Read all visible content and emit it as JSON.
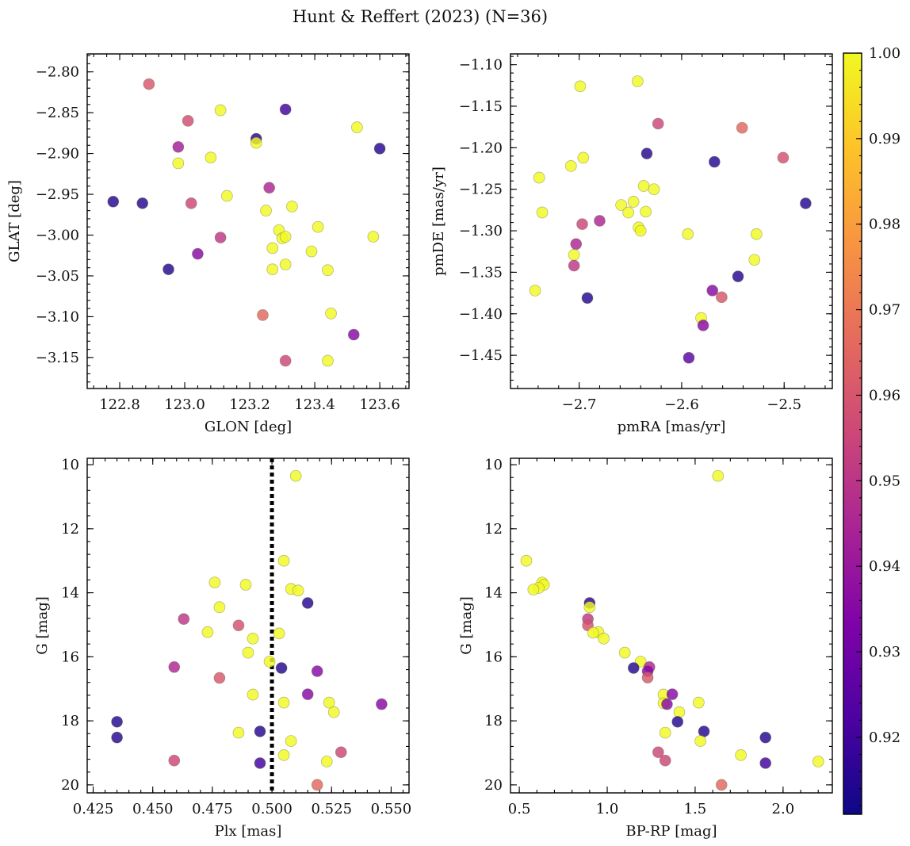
{
  "figure_title": "Hunt & Reffert (2023) (N=36)",
  "colorbar": {
    "ticks": [
      "0.92",
      "0.93",
      "0.94",
      "0.95",
      "0.96",
      "0.97",
      "0.98",
      "0.99",
      "1.00"
    ],
    "range": [
      0.911,
      1.0
    ],
    "colormap": "plasma"
  },
  "chart_data": [
    {
      "type": "scatter",
      "xlabel": "GLON [deg]",
      "ylabel": "GLAT [deg]",
      "xlim": [
        122.7,
        123.69
      ],
      "ylim": [
        -3.188,
        -2.778
      ],
      "xticks": [
        122.8,
        123.0,
        123.2,
        123.4,
        123.6
      ],
      "xtick_labels": [
        "122.8",
        "123.0",
        "123.2",
        "123.4",
        "123.6"
      ],
      "yticks": [
        -2.8,
        -2.85,
        -2.9,
        -2.95,
        -3.0,
        -3.05,
        -3.1,
        -3.15
      ],
      "ytick_labels": [
        "−2.80",
        "−2.85",
        "−2.90",
        "−2.95",
        "−3.00",
        "−3.05",
        "−3.10",
        "−3.15"
      ],
      "points": [
        {
          "x": 122.89,
          "y": -2.815,
          "c": 0.96
        },
        {
          "x": 123.01,
          "y": -2.86,
          "c": 0.957
        },
        {
          "x": 123.11,
          "y": -2.847,
          "c": 1.0
        },
        {
          "x": 123.31,
          "y": -2.846,
          "c": 0.92
        },
        {
          "x": 123.22,
          "y": -2.882,
          "c": 0.915
        },
        {
          "x": 123.22,
          "y": -2.887,
          "c": 1.0
        },
        {
          "x": 122.98,
          "y": -2.892,
          "c": 0.942
        },
        {
          "x": 122.98,
          "y": -2.912,
          "c": 1.0
        },
        {
          "x": 123.08,
          "y": -2.905,
          "c": 1.0
        },
        {
          "x": 123.53,
          "y": -2.868,
          "c": 1.0
        },
        {
          "x": 123.6,
          "y": -2.894,
          "c": 0.915
        },
        {
          "x": 122.78,
          "y": -2.959,
          "c": 0.915
        },
        {
          "x": 122.87,
          "y": -2.961,
          "c": 0.915
        },
        {
          "x": 123.02,
          "y": -2.961,
          "c": 0.955
        },
        {
          "x": 123.13,
          "y": -2.952,
          "c": 1.0
        },
        {
          "x": 123.26,
          "y": -2.942,
          "c": 0.945
        },
        {
          "x": 123.25,
          "y": -2.97,
          "c": 1.0
        },
        {
          "x": 123.33,
          "y": -2.965,
          "c": 1.0
        },
        {
          "x": 123.29,
          "y": -2.994,
          "c": 1.0
        },
        {
          "x": 123.3,
          "y": -3.004,
          "c": 1.0
        },
        {
          "x": 123.31,
          "y": -3.002,
          "c": 1.0
        },
        {
          "x": 123.41,
          "y": -2.99,
          "c": 1.0
        },
        {
          "x": 123.58,
          "y": -3.002,
          "c": 1.0
        },
        {
          "x": 123.11,
          "y": -3.003,
          "c": 0.95
        },
        {
          "x": 123.04,
          "y": -3.023,
          "c": 0.935
        },
        {
          "x": 122.95,
          "y": -3.042,
          "c": 0.915
        },
        {
          "x": 123.27,
          "y": -3.016,
          "c": 1.0
        },
        {
          "x": 123.27,
          "y": -3.042,
          "c": 1.0
        },
        {
          "x": 123.31,
          "y": -3.036,
          "c": 1.0
        },
        {
          "x": 123.39,
          "y": -3.02,
          "c": 1.0
        },
        {
          "x": 123.44,
          "y": -3.043,
          "c": 1.0
        },
        {
          "x": 123.24,
          "y": -3.098,
          "c": 0.965
        },
        {
          "x": 123.45,
          "y": -3.096,
          "c": 1.0
        },
        {
          "x": 123.52,
          "y": -3.122,
          "c": 0.935
        },
        {
          "x": 123.31,
          "y": -3.154,
          "c": 0.955
        },
        {
          "x": 123.44,
          "y": -3.154,
          "c": 1.0
        }
      ]
    },
    {
      "type": "scatter",
      "xlabel": "pmRA [mas/yr]",
      "ylabel": "pmDE [mas/yr]",
      "xlim": [
        -2.767,
        -2.453
      ],
      "ylim": [
        -1.49,
        -1.087
      ],
      "xticks": [
        -2.7,
        -2.6,
        -2.5
      ],
      "xtick_labels": [
        "−2.7",
        "−2.6",
        "−2.5"
      ],
      "yticks": [
        -1.1,
        -1.15,
        -1.2,
        -1.25,
        -1.3,
        -1.35,
        -1.4,
        -1.45
      ],
      "ytick_labels": [
        "−1.10",
        "−1.15",
        "−1.20",
        "−1.25",
        "−1.30",
        "−1.35",
        "−1.40",
        "−1.45"
      ],
      "points": [
        {
          "x": -2.699,
          "y": -1.126,
          "c": 1.0
        },
        {
          "x": -2.643,
          "y": -1.12,
          "c": 1.0
        },
        {
          "x": -2.623,
          "y": -1.171,
          "c": 0.955
        },
        {
          "x": -2.541,
          "y": -1.176,
          "c": 0.965
        },
        {
          "x": -2.501,
          "y": -1.212,
          "c": 0.958
        },
        {
          "x": -2.634,
          "y": -1.207,
          "c": 0.915
        },
        {
          "x": -2.568,
          "y": -1.217,
          "c": 0.915
        },
        {
          "x": -2.696,
          "y": -1.212,
          "c": 1.0
        },
        {
          "x": -2.708,
          "y": -1.222,
          "c": 1.0
        },
        {
          "x": -2.739,
          "y": -1.236,
          "c": 1.0
        },
        {
          "x": -2.736,
          "y": -1.278,
          "c": 1.0
        },
        {
          "x": -2.637,
          "y": -1.246,
          "c": 1.0
        },
        {
          "x": -2.627,
          "y": -1.25,
          "c": 1.0
        },
        {
          "x": -2.647,
          "y": -1.265,
          "c": 1.0
        },
        {
          "x": -2.659,
          "y": -1.269,
          "c": 1.0
        },
        {
          "x": -2.652,
          "y": -1.278,
          "c": 1.0
        },
        {
          "x": -2.635,
          "y": -1.277,
          "c": 1.0
        },
        {
          "x": -2.479,
          "y": -1.267,
          "c": 0.915
        },
        {
          "x": -2.68,
          "y": -1.288,
          "c": 0.945
        },
        {
          "x": -2.697,
          "y": -1.292,
          "c": 0.955
        },
        {
          "x": -2.642,
          "y": -1.296,
          "c": 1.0
        },
        {
          "x": -2.64,
          "y": -1.3,
          "c": 1.0
        },
        {
          "x": -2.594,
          "y": -1.304,
          "c": 1.0
        },
        {
          "x": -2.527,
          "y": -1.304,
          "c": 1.0
        },
        {
          "x": -2.703,
          "y": -1.316,
          "c": 0.945
        },
        {
          "x": -2.705,
          "y": -1.329,
          "c": 1.0
        },
        {
          "x": -2.705,
          "y": -1.342,
          "c": 0.95
        },
        {
          "x": -2.529,
          "y": -1.335,
          "c": 1.0
        },
        {
          "x": -2.545,
          "y": -1.355,
          "c": 0.915
        },
        {
          "x": -2.743,
          "y": -1.372,
          "c": 1.0
        },
        {
          "x": -2.57,
          "y": -1.372,
          "c": 0.935
        },
        {
          "x": -2.561,
          "y": -1.38,
          "c": 0.96
        },
        {
          "x": -2.692,
          "y": -1.381,
          "c": 0.915
        },
        {
          "x": -2.581,
          "y": -1.405,
          "c": 1.0
        },
        {
          "x": -2.579,
          "y": -1.414,
          "c": 0.935
        },
        {
          "x": -2.593,
          "y": -1.453,
          "c": 0.925
        }
      ]
    },
    {
      "type": "scatter",
      "xlabel": "Plx [mas]",
      "ylabel": "G [mag]",
      "xlim": [
        0.4225,
        0.5575
      ],
      "ylim": [
        20.25,
        9.8
      ],
      "y_inverted": true,
      "vline": {
        "x": 0.5,
        "style": "dotted"
      },
      "xticks": [
        0.425,
        0.45,
        0.475,
        0.5,
        0.525,
        0.55
      ],
      "xtick_labels": [
        "0.425",
        "0.450",
        "0.475",
        "0.500",
        "0.525",
        "0.550"
      ],
      "yticks": [
        10,
        12,
        14,
        16,
        18,
        20
      ],
      "ytick_labels": [
        "10",
        "12",
        "14",
        "16",
        "18",
        "20"
      ],
      "points": [
        {
          "x": 0.51,
          "y": 10.35,
          "c": 1.0
        },
        {
          "x": 0.505,
          "y": 13.0,
          "c": 1.0
        },
        {
          "x": 0.476,
          "y": 13.68,
          "c": 1.0
        },
        {
          "x": 0.489,
          "y": 13.75,
          "c": 1.0
        },
        {
          "x": 0.508,
          "y": 13.88,
          "c": 1.0
        },
        {
          "x": 0.511,
          "y": 13.93,
          "c": 1.0
        },
        {
          "x": 0.515,
          "y": 14.32,
          "c": 0.915
        },
        {
          "x": 0.478,
          "y": 14.45,
          "c": 1.0
        },
        {
          "x": 0.463,
          "y": 14.82,
          "c": 0.95
        },
        {
          "x": 0.486,
          "y": 15.02,
          "c": 0.958
        },
        {
          "x": 0.473,
          "y": 15.23,
          "c": 1.0
        },
        {
          "x": 0.503,
          "y": 15.27,
          "c": 1.0
        },
        {
          "x": 0.492,
          "y": 15.43,
          "c": 1.0
        },
        {
          "x": 0.49,
          "y": 15.87,
          "c": 1.0
        },
        {
          "x": 0.499,
          "y": 16.15,
          "c": 1.0
        },
        {
          "x": 0.459,
          "y": 16.32,
          "c": 0.945
        },
        {
          "x": 0.504,
          "y": 16.35,
          "c": 0.915
        },
        {
          "x": 0.519,
          "y": 16.45,
          "c": 0.935
        },
        {
          "x": 0.478,
          "y": 16.66,
          "c": 0.96
        },
        {
          "x": 0.492,
          "y": 17.18,
          "c": 1.0
        },
        {
          "x": 0.515,
          "y": 17.17,
          "c": 0.935
        },
        {
          "x": 0.505,
          "y": 17.43,
          "c": 1.0
        },
        {
          "x": 0.524,
          "y": 17.43,
          "c": 1.0
        },
        {
          "x": 0.546,
          "y": 17.48,
          "c": 0.935
        },
        {
          "x": 0.526,
          "y": 17.73,
          "c": 1.0
        },
        {
          "x": 0.435,
          "y": 18.03,
          "c": 0.915
        },
        {
          "x": 0.486,
          "y": 18.37,
          "c": 1.0
        },
        {
          "x": 0.495,
          "y": 18.33,
          "c": 0.915
        },
        {
          "x": 0.435,
          "y": 18.52,
          "c": 0.915
        },
        {
          "x": 0.508,
          "y": 18.63,
          "c": 1.0
        },
        {
          "x": 0.529,
          "y": 18.98,
          "c": 0.955
        },
        {
          "x": 0.505,
          "y": 19.07,
          "c": 1.0
        },
        {
          "x": 0.459,
          "y": 19.24,
          "c": 0.955
        },
        {
          "x": 0.523,
          "y": 19.27,
          "c": 1.0
        },
        {
          "x": 0.495,
          "y": 19.32,
          "c": 0.92
        },
        {
          "x": 0.519,
          "y": 20.0,
          "c": 0.965
        }
      ]
    },
    {
      "type": "scatter",
      "xlabel": "BP-RP [mag]",
      "ylabel": "G [mag]",
      "xlim": [
        0.45,
        2.28
      ],
      "ylim": [
        20.25,
        9.8
      ],
      "y_inverted": true,
      "xticks": [
        0.5,
        1.0,
        1.5,
        2.0
      ],
      "xtick_labels": [
        "0.5",
        "1.0",
        "1.5",
        "2.0"
      ],
      "yticks": [
        10,
        12,
        14,
        16,
        18,
        20
      ],
      "ytick_labels": [
        "10",
        "12",
        "14",
        "16",
        "18",
        "20"
      ],
      "points": [
        {
          "x": 1.63,
          "y": 10.35,
          "c": 1.0
        },
        {
          "x": 0.54,
          "y": 13.0,
          "c": 1.0
        },
        {
          "x": 0.63,
          "y": 13.68,
          "c": 1.0
        },
        {
          "x": 0.64,
          "y": 13.75,
          "c": 1.0
        },
        {
          "x": 0.61,
          "y": 13.85,
          "c": 1.0
        },
        {
          "x": 0.58,
          "y": 13.9,
          "c": 1.0
        },
        {
          "x": 0.9,
          "y": 14.32,
          "c": 0.915
        },
        {
          "x": 0.9,
          "y": 14.45,
          "c": 1.0
        },
        {
          "x": 0.89,
          "y": 14.82,
          "c": 0.95
        },
        {
          "x": 0.89,
          "y": 15.02,
          "c": 0.958
        },
        {
          "x": 0.95,
          "y": 15.23,
          "c": 1.0
        },
        {
          "x": 0.92,
          "y": 15.25,
          "c": 1.0
        },
        {
          "x": 0.98,
          "y": 15.43,
          "c": 1.0
        },
        {
          "x": 1.1,
          "y": 15.87,
          "c": 1.0
        },
        {
          "x": 1.19,
          "y": 16.15,
          "c": 1.0
        },
        {
          "x": 1.15,
          "y": 16.35,
          "c": 0.915
        },
        {
          "x": 1.24,
          "y": 16.32,
          "c": 0.945
        },
        {
          "x": 1.23,
          "y": 16.45,
          "c": 0.935
        },
        {
          "x": 1.23,
          "y": 16.65,
          "c": 0.96
        },
        {
          "x": 1.32,
          "y": 17.18,
          "c": 1.0
        },
        {
          "x": 1.37,
          "y": 17.17,
          "c": 0.935
        },
        {
          "x": 1.32,
          "y": 17.45,
          "c": 1.0
        },
        {
          "x": 1.34,
          "y": 17.48,
          "c": 0.935
        },
        {
          "x": 1.52,
          "y": 17.43,
          "c": 1.0
        },
        {
          "x": 1.41,
          "y": 17.73,
          "c": 1.0
        },
        {
          "x": 1.4,
          "y": 18.03,
          "c": 0.915
        },
        {
          "x": 1.33,
          "y": 18.37,
          "c": 1.0
        },
        {
          "x": 1.55,
          "y": 18.33,
          "c": 0.915
        },
        {
          "x": 1.9,
          "y": 18.52,
          "c": 0.915
        },
        {
          "x": 1.53,
          "y": 18.63,
          "c": 1.0
        },
        {
          "x": 1.29,
          "y": 18.98,
          "c": 0.955
        },
        {
          "x": 1.76,
          "y": 19.07,
          "c": 1.0
        },
        {
          "x": 1.33,
          "y": 19.24,
          "c": 0.955
        },
        {
          "x": 2.2,
          "y": 19.27,
          "c": 1.0
        },
        {
          "x": 1.9,
          "y": 19.32,
          "c": 0.92
        },
        {
          "x": 1.65,
          "y": 20.0,
          "c": 0.965
        }
      ]
    }
  ]
}
